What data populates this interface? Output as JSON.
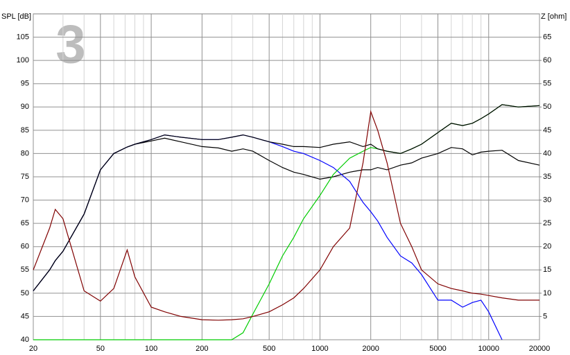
{
  "chart_data": {
    "type": "line",
    "badge": "3",
    "ylabel": "SPL [dB]",
    "y2label": "Z [ohm]",
    "xscale": "log",
    "grid": true,
    "x": [
      20,
      25,
      27,
      30,
      40,
      50,
      60,
      72,
      80,
      100,
      120,
      150,
      200,
      250,
      300,
      350,
      400,
      500,
      600,
      700,
      800,
      1000,
      1200,
      1500,
      1800,
      2000,
      2200,
      2500,
      3000,
      3500,
      4000,
      5000,
      6000,
      7000,
      8000,
      9000,
      10000,
      12000,
      15000,
      20000
    ],
    "xlim": [
      20,
      20000
    ],
    "xticks": [
      20,
      50,
      100,
      200,
      500,
      1000,
      2000,
      5000,
      10000,
      20000
    ],
    "xminorticks": [
      30,
      40,
      60,
      70,
      80,
      90,
      300,
      400,
      600,
      700,
      800,
      900,
      3000,
      4000,
      6000,
      7000,
      8000,
      9000
    ],
    "ylim": [
      40,
      110
    ],
    "yticks": [
      40,
      45,
      50,
      55,
      60,
      65,
      70,
      75,
      80,
      85,
      90,
      95,
      100,
      105
    ],
    "y2lim": [
      0,
      70
    ],
    "y2ticks": [
      5,
      10,
      15,
      20,
      25,
      30,
      35,
      40,
      45,
      50,
      55,
      60,
      65
    ],
    "series": [
      {
        "color": "#000000",
        "values": [
          50.5,
          55,
          57,
          59,
          67,
          76.5,
          80,
          81.4,
          82,
          82.7,
          83.3,
          82.5,
          81.5,
          81.2,
          80.5,
          81,
          80.5,
          78.5,
          77,
          76,
          75.5,
          74.5,
          75,
          76,
          76.5,
          76.5,
          77,
          76.5,
          77.5,
          78,
          79,
          80,
          81.3,
          81,
          79.7,
          80.3,
          80.5,
          80.7,
          78.5,
          77.5
        ]
      },
      {
        "color": "#0000ff",
        "values": [
          50.5,
          55,
          57,
          59,
          67,
          76.5,
          80,
          81.4,
          82,
          83,
          84,
          83.5,
          83,
          83,
          83.5,
          84,
          83.5,
          82.5,
          81.5,
          80.5,
          80,
          78.5,
          77,
          74,
          69.5,
          67.5,
          65.5,
          62,
          58,
          56.5,
          54,
          48.5,
          48.5,
          47,
          48,
          48.5,
          46,
          40,
          null,
          null
        ]
      },
      {
        "color": "#00cc00",
        "values": [
          40,
          40,
          40,
          40,
          40,
          40,
          40,
          40,
          40,
          40,
          40,
          40,
          40,
          40,
          40,
          41.5,
          45.5,
          52,
          58,
          62,
          66,
          71,
          75.5,
          79,
          80.5,
          81.3,
          81,
          80.5,
          80,
          81,
          82,
          84.5,
          86.5,
          86,
          86.5,
          87.5,
          88.5,
          90.5,
          90,
          90.3
        ]
      },
      {
        "color": "#000000",
        "values": [
          50.5,
          55,
          57,
          59,
          67,
          76.5,
          80,
          81.4,
          82,
          83,
          84,
          83.5,
          83,
          83,
          83.5,
          84,
          83.5,
          82.5,
          82,
          81.5,
          81.5,
          81.3,
          82,
          82.5,
          81.5,
          82,
          81,
          80.5,
          80,
          81,
          82,
          84.5,
          86.5,
          86,
          86.5,
          87.5,
          88.5,
          90.5,
          90,
          90.3
        ]
      },
      {
        "color": "#800000",
        "axis": "y2",
        "values": [
          15,
          24,
          28,
          26,
          10.5,
          8.3,
          11,
          19.3,
          13.5,
          7,
          6,
          5,
          4.3,
          4.2,
          4.3,
          4.5,
          5,
          6,
          7.5,
          9,
          11,
          15,
          20,
          24,
          38,
          49,
          45,
          38,
          25,
          20,
          15,
          12,
          11,
          10.5,
          10,
          9.8,
          9.5,
          9,
          8.5,
          8.5
        ]
      }
    ]
  }
}
